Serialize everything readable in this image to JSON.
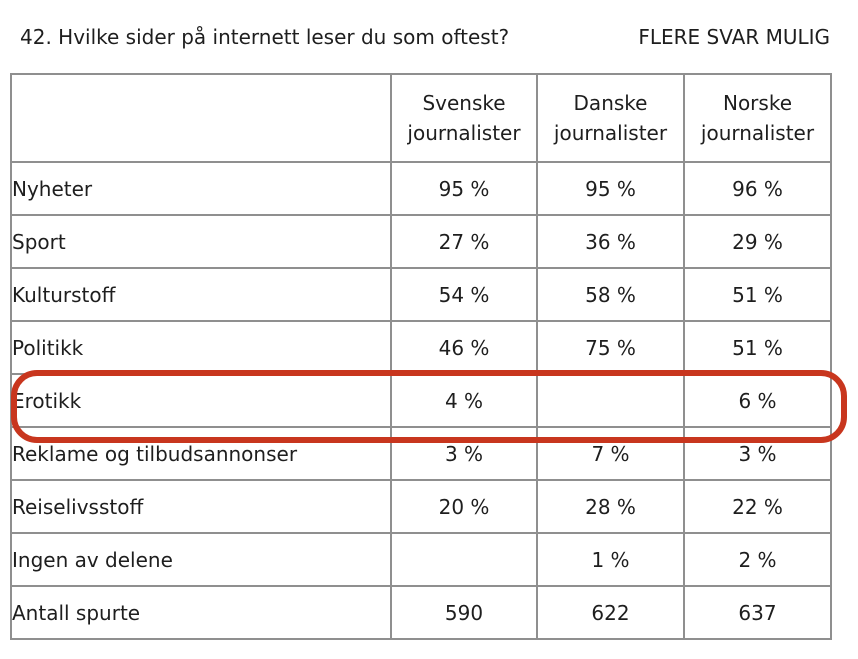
{
  "question": "42. Hvilke sider på internett leser du som oftest?",
  "note": "FLERE SVAR MULIG",
  "table": {
    "columns": [
      "Svenske journalister",
      "Danske journalister",
      "Norske journalister"
    ],
    "rows": [
      {
        "label": "Nyheter",
        "values": [
          "95 %",
          "95 %",
          "96 %"
        ]
      },
      {
        "label": "Sport",
        "values": [
          "27 %",
          "36 %",
          "29 %"
        ]
      },
      {
        "label": "Kulturstoff",
        "values": [
          "54 %",
          "58 %",
          "51 %"
        ]
      },
      {
        "label": "Politikk",
        "values": [
          "46 %",
          "75 %",
          "51 %"
        ]
      },
      {
        "label": "Erotikk",
        "values": [
          "4 %",
          "",
          "6 %"
        ]
      },
      {
        "label": "Reklame og tilbudsannonser",
        "values": [
          "3 %",
          "7 %",
          "3 %"
        ]
      },
      {
        "label": "Reiselivsstoff",
        "values": [
          "20 %",
          "28 %",
          "22 %"
        ]
      },
      {
        "label": "Ingen av delene",
        "values": [
          "",
          "1 %",
          "2 %"
        ]
      },
      {
        "label": "Antall spurte",
        "values": [
          "590",
          "622",
          "637"
        ]
      }
    ]
  },
  "highlight": {
    "row": "Erotikk",
    "color": "#c8361e"
  }
}
